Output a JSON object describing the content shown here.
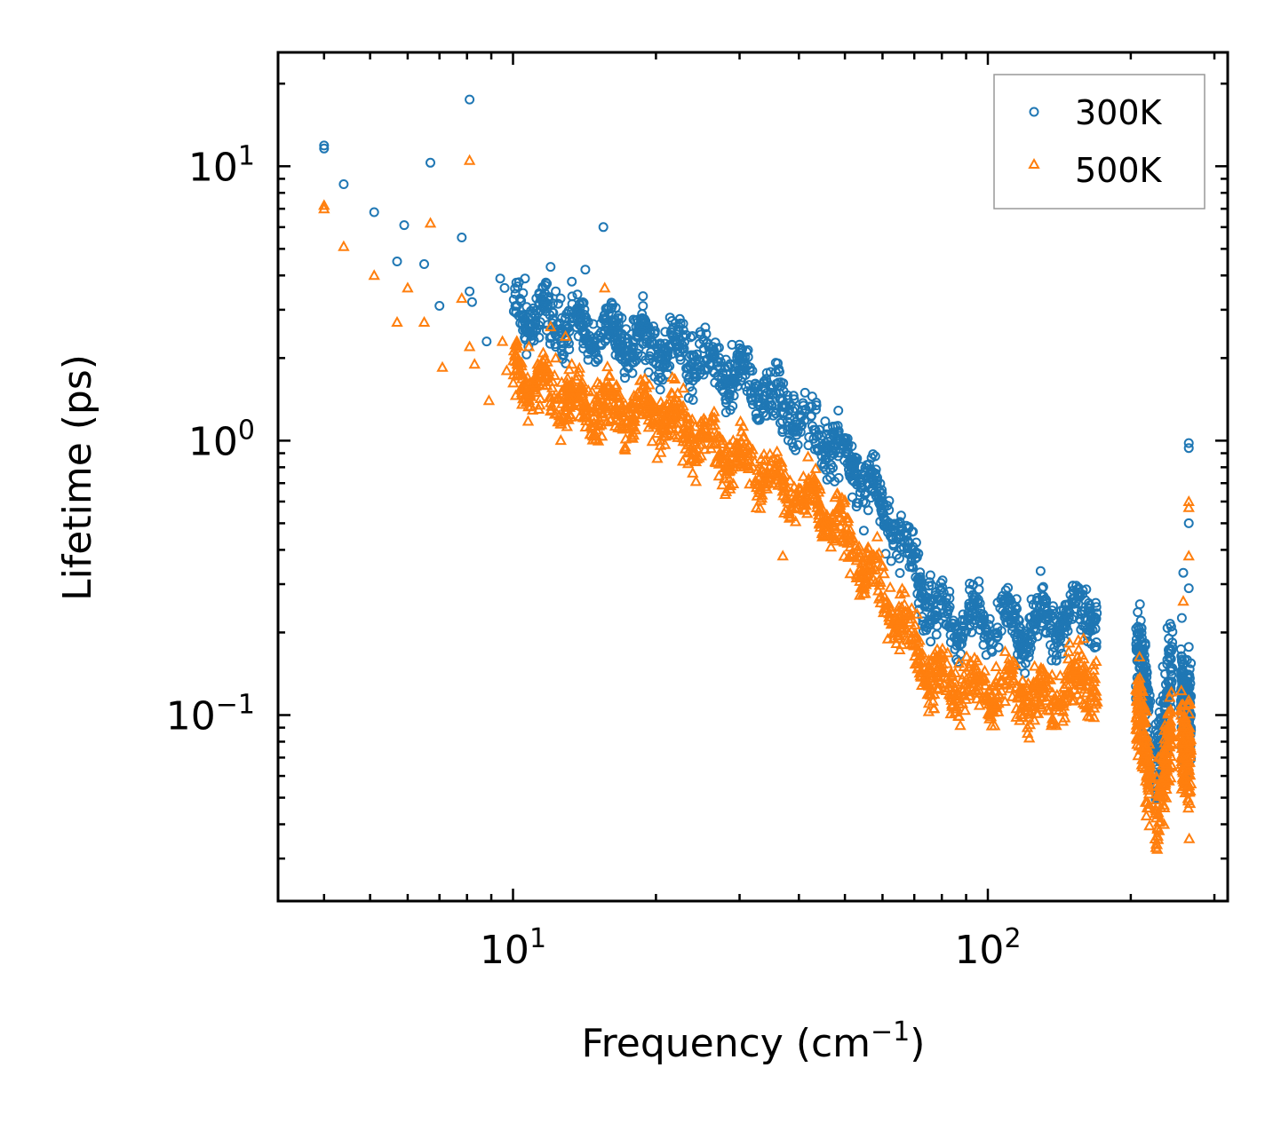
{
  "chart_data": {
    "type": "scatter",
    "title": "",
    "xlabel": "Frequency (cm",
    "xlabel_sup": "−1",
    "xlabel_end": ")",
    "ylabel": "Lifetime (ps)",
    "xscale": "log",
    "yscale": "log",
    "xlim": [
      3.2,
      320
    ],
    "ylim": [
      0.021,
      26
    ],
    "x_ticks": [
      {
        "value": 10,
        "base": "10",
        "exp": "1"
      },
      {
        "value": 100,
        "base": "10",
        "exp": "2"
      }
    ],
    "y_ticks": [
      {
        "value": 0.1,
        "base": "10",
        "exp": "−1"
      },
      {
        "value": 1,
        "base": "10",
        "exp": "0"
      },
      {
        "value": 10,
        "base": "10",
        "exp": "1"
      }
    ],
    "legend_position": "top-right",
    "series": [
      {
        "name": "300K",
        "marker": "circle",
        "color": "#1f77b4",
        "envelope": [
          [
            10,
            3.0
          ],
          [
            14,
            2.5
          ],
          [
            20,
            2.3
          ],
          [
            25,
            2.0
          ],
          [
            30,
            1.7
          ],
          [
            35,
            1.45
          ],
          [
            40,
            1.2
          ],
          [
            45,
            1.0
          ],
          [
            50,
            0.88
          ],
          [
            55,
            0.72
          ],
          [
            60,
            0.58
          ],
          [
            65,
            0.46
          ],
          [
            70,
            0.34
          ],
          [
            75,
            0.26
          ],
          [
            80,
            0.22
          ],
          [
            90,
            0.22
          ],
          [
            100,
            0.22
          ],
          [
            110,
            0.22
          ],
          [
            120,
            0.21
          ],
          [
            130,
            0.22
          ],
          [
            140,
            0.22
          ],
          [
            150,
            0.23
          ],
          [
            165,
            0.25
          ],
          [
            210,
            0.15
          ],
          [
            225,
            0.07
          ],
          [
            245,
            0.14
          ],
          [
            258,
            0.12
          ]
        ],
        "outliers": [
          [
            4.0,
            11.9
          ],
          [
            4.0,
            11.6
          ],
          [
            4.4,
            8.6
          ],
          [
            5.1,
            6.8
          ],
          [
            5.9,
            6.1
          ],
          [
            5.7,
            4.5
          ],
          [
            6.5,
            4.4
          ],
          [
            6.7,
            10.3
          ],
          [
            7.0,
            3.1
          ],
          [
            7.8,
            5.5
          ],
          [
            8.1,
            3.5
          ],
          [
            8.1,
            17.5
          ],
          [
            8.2,
            3.2
          ],
          [
            8.8,
            2.3
          ],
          [
            9.4,
            3.9
          ],
          [
            9.6,
            3.6
          ],
          [
            10.2,
            3.1
          ],
          [
            10.6,
            3.9
          ],
          [
            12.0,
            4.3
          ],
          [
            12.3,
            3.5
          ],
          [
            12.6,
            3.3
          ],
          [
            13.3,
            3.8
          ],
          [
            14.2,
            4.2
          ],
          [
            15.5,
            6.0
          ],
          [
            11.2,
            3.3
          ],
          [
            11.6,
            3.1
          ],
          [
            265,
            0.98
          ],
          [
            265,
            0.94
          ],
          [
            265,
            0.5
          ],
          [
            258,
            0.33
          ],
          [
            265,
            0.29
          ]
        ]
      },
      {
        "name": "500K",
        "marker": "triangle",
        "color": "#ff7f0e",
        "envelope": [
          [
            10,
            1.8
          ],
          [
            14,
            1.3
          ],
          [
            20,
            1.3
          ],
          [
            25,
            1.0
          ],
          [
            30,
            0.85
          ],
          [
            35,
            0.75
          ],
          [
            40,
            0.65
          ],
          [
            45,
            0.56
          ],
          [
            50,
            0.45
          ],
          [
            55,
            0.35
          ],
          [
            60,
            0.28
          ],
          [
            65,
            0.22
          ],
          [
            70,
            0.18
          ],
          [
            75,
            0.15
          ],
          [
            80,
            0.13
          ],
          [
            90,
            0.13
          ],
          [
            100,
            0.12
          ],
          [
            110,
            0.13
          ],
          [
            120,
            0.12
          ],
          [
            130,
            0.11
          ],
          [
            140,
            0.12
          ],
          [
            150,
            0.13
          ],
          [
            165,
            0.14
          ],
          [
            210,
            0.09
          ],
          [
            225,
            0.045
          ],
          [
            245,
            0.08
          ],
          [
            258,
            0.08
          ]
        ],
        "outliers": [
          [
            4.0,
            7.2
          ],
          [
            4.0,
            7.0
          ],
          [
            4.4,
            5.1
          ],
          [
            5.1,
            4.0
          ],
          [
            5.7,
            2.7
          ],
          [
            6.0,
            3.6
          ],
          [
            6.5,
            2.7
          ],
          [
            6.7,
            6.2
          ],
          [
            7.1,
            1.85
          ],
          [
            7.8,
            3.3
          ],
          [
            8.1,
            10.5
          ],
          [
            8.1,
            2.2
          ],
          [
            8.3,
            1.9
          ],
          [
            8.9,
            1.4
          ],
          [
            9.5,
            2.3
          ],
          [
            9.7,
            1.8
          ],
          [
            10.2,
            1.9
          ],
          [
            10.8,
            2.2
          ],
          [
            12.0,
            2.6
          ],
          [
            12.3,
            2.0
          ],
          [
            12.9,
            2.4
          ],
          [
            13.3,
            1.9
          ],
          [
            15.6,
            3.6
          ],
          [
            11.2,
            1.7
          ],
          [
            37,
            0.38
          ],
          [
            265,
            0.6
          ],
          [
            265,
            0.57
          ],
          [
            265,
            0.38
          ],
          [
            258,
            0.26
          ]
        ]
      }
    ]
  }
}
